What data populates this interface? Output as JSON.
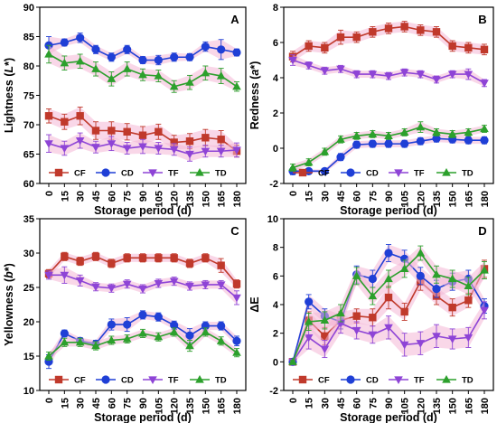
{
  "colors": {
    "CF": "#c0392b",
    "CD": "#1f3fd6",
    "TF": "#8e44d6",
    "TD": "#2ca02c",
    "band": "#f4b6d6"
  },
  "chart_data": [
    {
      "id": "A",
      "type": "line",
      "panel_label": "A",
      "xlabel": "Storage period (d)",
      "ylabel": "Lightness (L*)",
      "categories": [
        "0",
        "15",
        "30",
        "45",
        "60",
        "75",
        "90",
        "105",
        "120",
        "135",
        "150",
        "165",
        "180"
      ],
      "ylim": [
        60,
        90
      ],
      "yticks": [
        60,
        65,
        70,
        75,
        80,
        85,
        90
      ],
      "legend_position": "bottom",
      "series": [
        {
          "name": "CF",
          "marker": "square",
          "values": [
            71.5,
            70.5,
            71.5,
            69.0,
            69.0,
            68.8,
            68.2,
            68.8,
            67.0,
            67.2,
            67.8,
            67.5,
            65.5
          ],
          "errors": [
            1.2,
            1.3,
            1.5,
            1.5,
            1.5,
            1.4,
            1.5,
            1.3,
            1.2,
            1.3,
            1.4,
            1.5,
            1.0
          ]
        },
        {
          "name": "CD",
          "marker": "circle",
          "values": [
            83.5,
            84.0,
            84.8,
            82.8,
            81.5,
            82.8,
            81.0,
            81.0,
            81.5,
            81.5,
            83.3,
            82.8,
            82.3
          ],
          "errors": [
            1.5,
            0.6,
            0.8,
            0.7,
            0.7,
            0.7,
            0.6,
            0.8,
            0.7,
            0.6,
            0.8,
            1.7,
            0.6
          ]
        },
        {
          "name": "TF",
          "marker": "triangle-down",
          "values": [
            66.8,
            66.0,
            67.3,
            66.2,
            66.8,
            66.0,
            66.3,
            66.0,
            65.8,
            65.0,
            65.5,
            65.5,
            65.7
          ],
          "errors": [
            1.5,
            1.2,
            1.3,
            1.0,
            1.2,
            1.0,
            1.2,
            1.0,
            1.0,
            1.2,
            1.0,
            1.0,
            1.2
          ]
        },
        {
          "name": "TD",
          "marker": "triangle-up",
          "values": [
            82.0,
            80.5,
            80.8,
            79.5,
            77.8,
            79.5,
            78.5,
            78.3,
            76.5,
            77.2,
            78.8,
            78.3,
            76.5
          ],
          "errors": [
            1.5,
            1.2,
            1.2,
            1.2,
            1.2,
            1.2,
            1.0,
            1.0,
            1.0,
            1.2,
            1.2,
            1.3,
            0.8
          ]
        }
      ]
    },
    {
      "id": "B",
      "type": "line",
      "panel_label": "B",
      "xlabel": "Storage period (d)",
      "ylabel": "Redness (a*)",
      "categories": [
        "0",
        "15",
        "30",
        "45",
        "60",
        "75",
        "90",
        "105",
        "120",
        "135",
        "150",
        "165",
        "180"
      ],
      "ylim": [
        -2,
        8
      ],
      "yticks": [
        -2,
        0,
        2,
        4,
        6,
        8
      ],
      "legend_position": "bottom",
      "series": [
        {
          "name": "CF",
          "marker": "square",
          "values": [
            5.2,
            5.8,
            5.7,
            6.3,
            6.3,
            6.6,
            6.8,
            6.9,
            6.7,
            6.6,
            5.8,
            5.7,
            5.6
          ],
          "errors": [
            0.3,
            0.3,
            0.3,
            0.4,
            0.3,
            0.3,
            0.3,
            0.3,
            0.3,
            0.3,
            0.3,
            0.3,
            0.3
          ]
        },
        {
          "name": "CD",
          "marker": "circle",
          "values": [
            -1.3,
            -1.3,
            -1.3,
            -0.5,
            0.2,
            0.25,
            0.25,
            0.25,
            0.4,
            0.55,
            0.5,
            0.45,
            0.45
          ],
          "errors": [
            0.2,
            0.1,
            0.1,
            0.2,
            0.2,
            0.2,
            0.2,
            0.2,
            0.2,
            0.2,
            0.2,
            0.2,
            0.2
          ]
        },
        {
          "name": "TF",
          "marker": "triangle-down",
          "values": [
            5.0,
            4.7,
            4.4,
            4.5,
            4.2,
            4.2,
            4.1,
            4.3,
            4.2,
            3.9,
            4.2,
            4.2,
            3.7
          ],
          "errors": [
            0.3,
            0.2,
            0.2,
            0.2,
            0.2,
            0.2,
            0.2,
            0.2,
            0.2,
            0.2,
            0.2,
            0.3,
            0.2
          ]
        },
        {
          "name": "TD",
          "marker": "triangle-up",
          "values": [
            -1.1,
            -0.8,
            -0.2,
            0.5,
            0.7,
            0.8,
            0.7,
            0.9,
            1.2,
            0.9,
            0.8,
            0.9,
            1.1
          ],
          "errors": [
            0.2,
            0.2,
            0.2,
            0.2,
            0.2,
            0.2,
            0.2,
            0.2,
            0.3,
            0.2,
            0.2,
            0.2,
            0.2
          ]
        }
      ]
    },
    {
      "id": "C",
      "type": "line",
      "panel_label": "C",
      "xlabel": "Storage period (d)",
      "ylabel": "Yellowness (b*)",
      "categories": [
        "0",
        "15",
        "30",
        "45",
        "60",
        "75",
        "90",
        "105",
        "120",
        "135",
        "150",
        "165",
        "180"
      ],
      "ylim": [
        10,
        35
      ],
      "yticks": [
        10,
        15,
        20,
        25,
        30,
        35
      ],
      "legend_position": "bottom",
      "series": [
        {
          "name": "CF",
          "marker": "square",
          "values": [
            27.0,
            29.5,
            28.8,
            29.5,
            28.5,
            29.3,
            29.3,
            29.3,
            29.3,
            28.5,
            29.3,
            28.2,
            25.5
          ],
          "errors": [
            0.6,
            0.6,
            0.6,
            0.6,
            0.6,
            0.6,
            0.6,
            0.6,
            0.6,
            0.6,
            0.6,
            1.0,
            0.6
          ]
        },
        {
          "name": "CD",
          "marker": "circle",
          "values": [
            14.2,
            18.3,
            17.2,
            16.8,
            19.6,
            19.6,
            21.0,
            20.7,
            19.5,
            18.0,
            19.4,
            19.4,
            17.2
          ],
          "errors": [
            1.0,
            0.5,
            0.5,
            0.5,
            0.8,
            1.0,
            0.6,
            0.6,
            0.6,
            1.0,
            0.6,
            0.6,
            0.7
          ]
        },
        {
          "name": "TF",
          "marker": "triangle-down",
          "values": [
            26.8,
            26.8,
            26.0,
            25.1,
            24.9,
            25.5,
            24.8,
            25.6,
            25.9,
            25.2,
            25.4,
            25.4,
            23.5
          ],
          "errors": [
            0.6,
            1.2,
            0.8,
            0.6,
            0.6,
            0.6,
            0.6,
            0.6,
            0.6,
            0.6,
            0.6,
            0.6,
            1.0
          ]
        },
        {
          "name": "TD",
          "marker": "triangle-up",
          "values": [
            15.0,
            17.0,
            17.0,
            16.5,
            17.3,
            17.5,
            18.3,
            17.8,
            18.5,
            16.5,
            18.5,
            17.2,
            15.5
          ],
          "errors": [
            0.6,
            0.6,
            0.6,
            0.6,
            0.6,
            0.6,
            0.6,
            0.6,
            0.6,
            0.8,
            0.6,
            0.6,
            0.6
          ]
        }
      ]
    },
    {
      "id": "D",
      "type": "line",
      "panel_label": "D",
      "xlabel": "Storage period (d)",
      "ylabel": "ΔE",
      "categories": [
        "0",
        "15",
        "30",
        "45",
        "60",
        "75",
        "90",
        "105",
        "120",
        "135",
        "150",
        "165",
        "180"
      ],
      "ylim": [
        -2,
        10
      ],
      "yticks": [
        -2,
        0,
        2,
        4,
        6,
        8,
        10
      ],
      "legend_position": "bottom",
      "series": [
        {
          "name": "CF",
          "marker": "square",
          "values": [
            0.0,
            2.9,
            1.8,
            2.9,
            3.2,
            3.1,
            4.5,
            3.5,
            5.6,
            4.6,
            3.8,
            4.3,
            6.5
          ],
          "errors": [
            0.1,
            0.6,
            0.6,
            0.6,
            0.5,
            0.6,
            0.8,
            0.6,
            0.6,
            0.6,
            0.6,
            0.5,
            0.6
          ]
        },
        {
          "name": "CD",
          "marker": "circle",
          "values": [
            0.0,
            4.2,
            3.2,
            2.8,
            6.1,
            5.8,
            7.6,
            7.2,
            6.0,
            5.1,
            5.6,
            5.8,
            3.9
          ],
          "errors": [
            0.1,
            0.5,
            0.5,
            0.5,
            0.6,
            0.6,
            0.6,
            0.6,
            0.6,
            0.6,
            0.6,
            0.6,
            0.5
          ]
        },
        {
          "name": "TF",
          "marker": "triangle-down",
          "values": [
            0.0,
            1.7,
            0.9,
            2.7,
            2.2,
            1.9,
            2.4,
            1.2,
            1.3,
            1.8,
            1.6,
            1.7,
            3.6
          ],
          "errors": [
            0.1,
            0.8,
            0.6,
            0.7,
            0.6,
            0.6,
            0.8,
            0.8,
            0.8,
            0.8,
            0.7,
            0.7,
            0.6
          ]
        },
        {
          "name": "TD",
          "marker": "triangle-up",
          "values": [
            0.0,
            2.8,
            2.9,
            3.4,
            6.0,
            4.6,
            5.8,
            6.5,
            7.6,
            6.1,
            5.8,
            5.3,
            6.4
          ],
          "errors": [
            0.1,
            0.6,
            0.6,
            0.6,
            0.6,
            0.6,
            0.6,
            0.6,
            0.5,
            0.6,
            0.6,
            0.6,
            0.6
          ]
        }
      ]
    }
  ]
}
